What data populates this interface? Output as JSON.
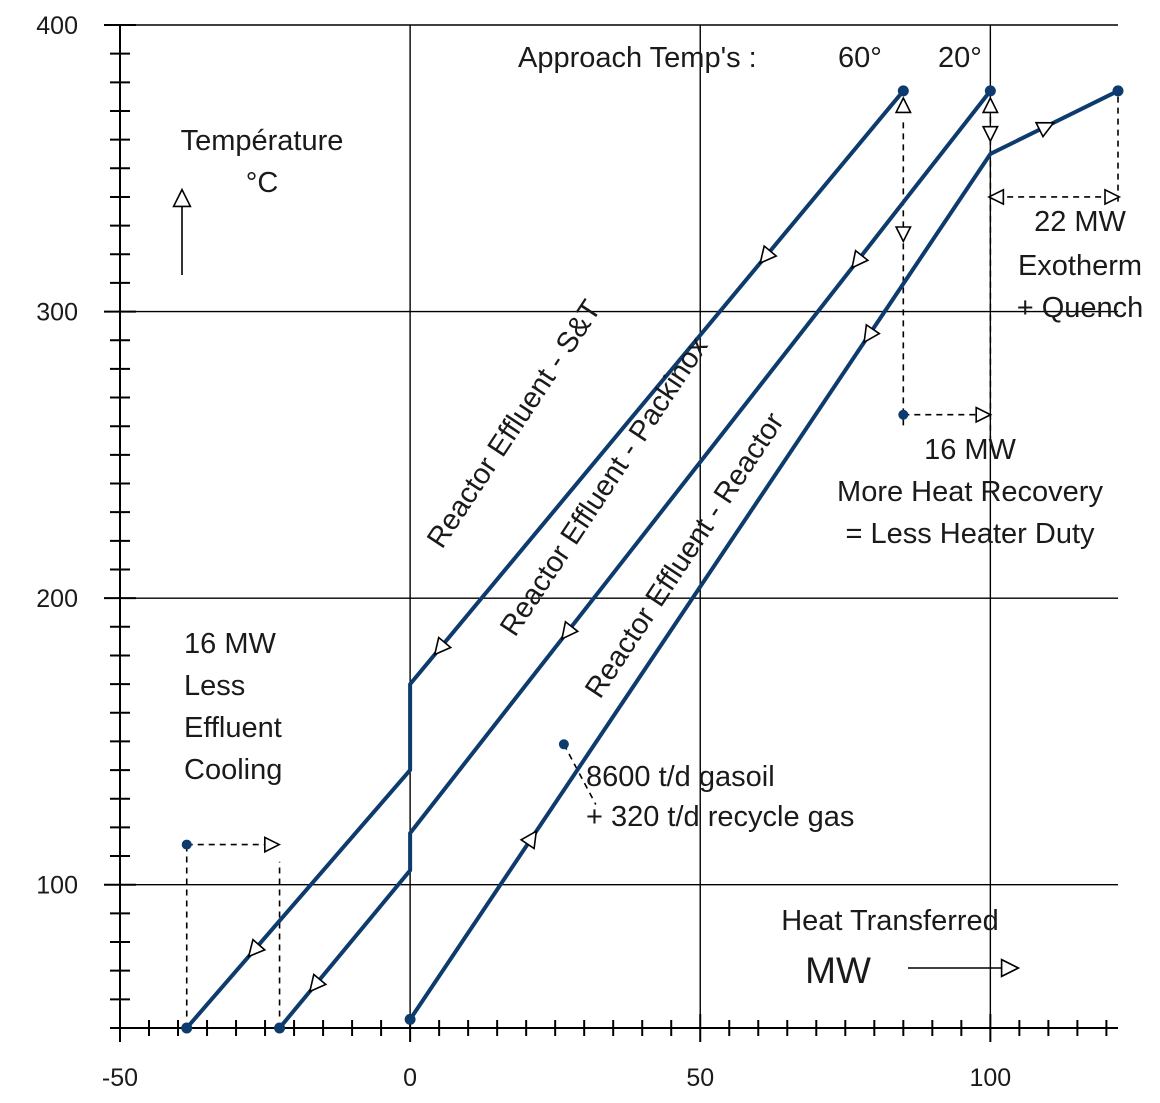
{
  "chart_data": {
    "type": "line",
    "title": "",
    "xlabel": "Heat Transferred",
    "xunit": "MW",
    "ylabel": "Température",
    "yunit": "°C",
    "xlim": [
      -50,
      122
    ],
    "ylim": [
      50,
      400
    ],
    "x_ticks": [
      -50,
      0,
      50,
      100
    ],
    "y_ticks": [
      100,
      200,
      300,
      400
    ],
    "x_minor_step": 5,
    "y_minor_step": 10,
    "grid": true,
    "series": [
      {
        "name": "Reactor Effluent - S&T",
        "points": [
          [
            -38.5,
            50
          ],
          [
            0,
            140
          ],
          [
            0,
            170
          ],
          [
            85,
            377
          ]
        ]
      },
      {
        "name": "Reactor Effluent - Packinox",
        "points": [
          [
            -22.5,
            50
          ],
          [
            0,
            105
          ],
          [
            0,
            118
          ],
          [
            100,
            377
          ]
        ]
      },
      {
        "name": "Reactor Effluent - Reactor",
        "points": [
          [
            0,
            53
          ],
          [
            100,
            355
          ],
          [
            122,
            377
          ]
        ]
      }
    ],
    "annotations": {
      "approach": "Approach Temp's :",
      "approach_60": "60°",
      "approach_20": "20°",
      "exotherm": [
        "22 MW",
        "Exotherm",
        "+ Quench"
      ],
      "recovery": [
        "16 MW",
        "More Heat Recovery",
        "= Less Heater Duty"
      ],
      "cooling": [
        "16 MW",
        "Less",
        "Effluent",
        "Cooling"
      ],
      "feed": [
        "8600 t/d gasoil",
        "+ 320 t/d recycle gas"
      ]
    },
    "colors": {
      "series": "#0d3b6e",
      "grid": "#000000"
    }
  }
}
